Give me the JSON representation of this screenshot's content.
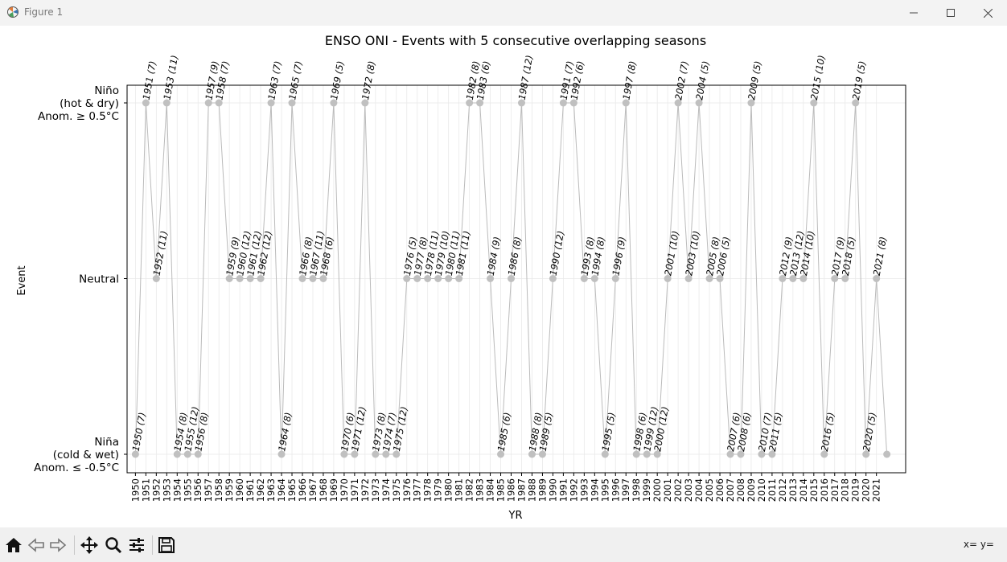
{
  "window": {
    "title": "Figure 1"
  },
  "toolbar": {
    "coords_label": "x= y="
  },
  "chart_data": {
    "type": "line",
    "title": "ENSO ONI - Events with 5 consecutive overlapping seasons",
    "xlabel": "YR",
    "ylabel": "Event",
    "y_categories": [
      {
        "key": "nina",
        "lines": [
          "Niña",
          "(cold & wet)",
          "Anom. ≤ -0.5°C"
        ]
      },
      {
        "key": "neutral",
        "lines": [
          "Neutral"
        ]
      },
      {
        "key": "nino",
        "lines": [
          "Niño",
          "(hot & dry)",
          "Anom. ≥ 0.5°C"
        ]
      }
    ],
    "x_ticks": [
      1950,
      1951,
      1952,
      1953,
      1954,
      1955,
      1956,
      1957,
      1958,
      1959,
      1960,
      1961,
      1962,
      1963,
      1964,
      1965,
      1966,
      1967,
      1968,
      1969,
      1970,
      1971,
      1972,
      1973,
      1974,
      1975,
      1976,
      1977,
      1978,
      1979,
      1980,
      1981,
      1982,
      1983,
      1984,
      1985,
      1986,
      1987,
      1988,
      1989,
      1990,
      1991,
      1992,
      1993,
      1994,
      1995,
      1996,
      1997,
      1998,
      1999,
      2000,
      2001,
      2002,
      2003,
      2004,
      2005,
      2006,
      2007,
      2008,
      2009,
      2010,
      2011,
      2012,
      2013,
      2014,
      2015,
      2016,
      2017,
      2018,
      2019,
      2020,
      2021
    ],
    "xlim": [
      1949.2,
      2023.8
    ],
    "grid": true,
    "points": [
      {
        "year": 1950,
        "state": "nina",
        "label": "1950 (7)"
      },
      {
        "year": 1951,
        "state": "nino",
        "label": "1951 (7)"
      },
      {
        "year": 1952,
        "state": "neutral",
        "label": "1952 (11)"
      },
      {
        "year": 1953,
        "state": "nino",
        "label": "1953 (11)"
      },
      {
        "year": 1954,
        "state": "nina",
        "label": "1954 (8)"
      },
      {
        "year": 1955,
        "state": "nina",
        "label": "1955 (12)"
      },
      {
        "year": 1956,
        "state": "nina",
        "label": "1956 (8)"
      },
      {
        "year": 1957,
        "state": "nino",
        "label": "1957 (9)"
      },
      {
        "year": 1958,
        "state": "nino",
        "label": "1958 (7)"
      },
      {
        "year": 1959,
        "state": "neutral",
        "label": "1959 (9)"
      },
      {
        "year": 1960,
        "state": "neutral",
        "label": "1960 (12)"
      },
      {
        "year": 1961,
        "state": "neutral",
        "label": "1961 (12)"
      },
      {
        "year": 1962,
        "state": "neutral",
        "label": "1962 (12)"
      },
      {
        "year": 1963,
        "state": "nino",
        "label": "1963 (7)"
      },
      {
        "year": 1964,
        "state": "nina",
        "label": "1964 (8)"
      },
      {
        "year": 1965,
        "state": "nino",
        "label": "1965 (7)"
      },
      {
        "year": 1966,
        "state": "neutral",
        "label": "1966 (8)"
      },
      {
        "year": 1967,
        "state": "neutral",
        "label": "1967 (11)"
      },
      {
        "year": 1968,
        "state": "neutral",
        "label": "1968 (6)"
      },
      {
        "year": 1969,
        "state": "nino",
        "label": "1969 (5)"
      },
      {
        "year": 1970,
        "state": "nina",
        "label": "1970 (6)"
      },
      {
        "year": 1971,
        "state": "nina",
        "label": "1971 (12)"
      },
      {
        "year": 1972,
        "state": "nino",
        "label": "1972 (8)"
      },
      {
        "year": 1973,
        "state": "nina",
        "label": "1973 (8)"
      },
      {
        "year": 1974,
        "state": "nina",
        "label": "1974 (7)"
      },
      {
        "year": 1975,
        "state": "nina",
        "label": "1975 (12)"
      },
      {
        "year": 1976,
        "state": "neutral",
        "label": "1976 (5)"
      },
      {
        "year": 1977,
        "state": "neutral",
        "label": "1977 (8)"
      },
      {
        "year": 1978,
        "state": "neutral",
        "label": "1978 (11)"
      },
      {
        "year": 1979,
        "state": "neutral",
        "label": "1979 (10)"
      },
      {
        "year": 1980,
        "state": "neutral",
        "label": "1980 (11)"
      },
      {
        "year": 1981,
        "state": "neutral",
        "label": "1981 (11)"
      },
      {
        "year": 1982,
        "state": "nino",
        "label": "1982 (8)"
      },
      {
        "year": 1983,
        "state": "nino",
        "label": "1983 (6)"
      },
      {
        "year": 1984,
        "state": "neutral",
        "label": "1984 (9)"
      },
      {
        "year": 1985,
        "state": "nina",
        "label": "1985 (6)"
      },
      {
        "year": 1986,
        "state": "neutral",
        "label": "1986 (8)"
      },
      {
        "year": 1987,
        "state": "nino",
        "label": "1987 (12)"
      },
      {
        "year": 1988,
        "state": "nina",
        "label": "1988 (8)"
      },
      {
        "year": 1989,
        "state": "nina",
        "label": "1989 (5)"
      },
      {
        "year": 1990,
        "state": "neutral",
        "label": "1990 (12)"
      },
      {
        "year": 1991,
        "state": "nino",
        "label": "1991 (7)"
      },
      {
        "year": 1992,
        "state": "nino",
        "label": "1992 (6)"
      },
      {
        "year": 1993,
        "state": "neutral",
        "label": "1993 (8)"
      },
      {
        "year": 1994,
        "state": "neutral",
        "label": "1994 (8)"
      },
      {
        "year": 1995,
        "state": "nina",
        "label": "1995 (5)"
      },
      {
        "year": 1996,
        "state": "neutral",
        "label": "1996 (9)"
      },
      {
        "year": 1997,
        "state": "nino",
        "label": "1997 (8)"
      },
      {
        "year": 1998,
        "state": "nina",
        "label": "1998 (6)"
      },
      {
        "year": 1999,
        "state": "nina",
        "label": "1999 (12)"
      },
      {
        "year": 2000,
        "state": "nina",
        "label": "2000 (12)"
      },
      {
        "year": 2001,
        "state": "neutral",
        "label": "2001 (10)"
      },
      {
        "year": 2002,
        "state": "nino",
        "label": "2002 (7)"
      },
      {
        "year": 2003,
        "state": "neutral",
        "label": "2003 (10)"
      },
      {
        "year": 2004,
        "state": "nino",
        "label": "2004 (5)"
      },
      {
        "year": 2005,
        "state": "neutral",
        "label": "2005 (8)"
      },
      {
        "year": 2006,
        "state": "neutral",
        "label": "2006 (5)"
      },
      {
        "year": 2007,
        "state": "nina",
        "label": "2007 (6)"
      },
      {
        "year": 2008,
        "state": "nina",
        "label": "2008 (6)"
      },
      {
        "year": 2009,
        "state": "nino",
        "label": "2009 (5)"
      },
      {
        "year": 2010,
        "state": "nina",
        "label": "2010 (7)"
      },
      {
        "year": 2011,
        "state": "nina",
        "label": "2011 (5)"
      },
      {
        "year": 2012,
        "state": "neutral",
        "label": "2012 (9)"
      },
      {
        "year": 2013,
        "state": "neutral",
        "label": "2013 (12)"
      },
      {
        "year": 2014,
        "state": "neutral",
        "label": "2014 (10)"
      },
      {
        "year": 2015,
        "state": "nino",
        "label": "2015 (10)"
      },
      {
        "year": 2016,
        "state": "nina",
        "label": "2016 (5)"
      },
      {
        "year": 2017,
        "state": "neutral",
        "label": "2017 (9)"
      },
      {
        "year": 2018,
        "state": "neutral",
        "label": "2018 (5)"
      },
      {
        "year": 2019,
        "state": "nino",
        "label": "2019 (5)"
      },
      {
        "year": 2020,
        "state": "nina",
        "label": "2020 (5)"
      },
      {
        "year": 2021,
        "state": "neutral",
        "label": "2021 (8)"
      },
      {
        "year": 2022,
        "state": "nina",
        "label": ""
      }
    ],
    "colors": {
      "line": "#bbbbbb",
      "marker": "#c0c0c0"
    }
  }
}
